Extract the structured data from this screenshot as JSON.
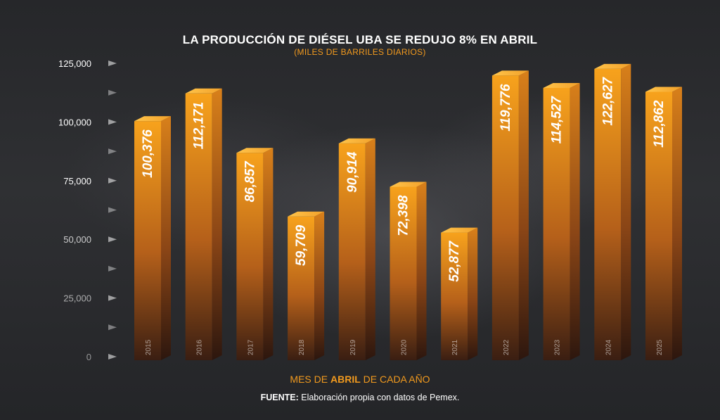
{
  "header": {
    "title": "LA PRODUCCIÓN DE DIÉSEL UBA SE REDUJO 8% EN ABRIL",
    "subtitle": "(MILES DE BARRILES DIARIOS)"
  },
  "footer": {
    "xlabel_prefix": "MES DE ",
    "xlabel_bold": "ABRIL",
    "xlabel_suffix": " DE CADA AÑO",
    "source_label": "FUENTE:",
    "source_text": " Elaboración propia con datos de Pemex."
  },
  "colors": {
    "bar_top": "#f7a21c",
    "bar_bottom": "#3a1e12",
    "accent": "#f29a1e",
    "tick_text": "#ffffff"
  },
  "chart_data": {
    "type": "bar",
    "title": "LA PRODUCCIÓN DE DIÉSEL UBA SE REDUJO 8% EN ABRIL",
    "subtitle": "(MILES DE BARRILES DIARIOS)",
    "xlabel": "MES DE ABRIL DE CADA AÑO",
    "ylabel": "",
    "categories": [
      "2015",
      "2016",
      "2017",
      "2018",
      "2019",
      "2020",
      "2021",
      "2022",
      "2023",
      "2024",
      "2025"
    ],
    "values": [
      100376,
      112171,
      86857,
      59709,
      90914,
      72398,
      52877,
      119776,
      114527,
      122627,
      112862
    ],
    "value_labels": [
      "100,376",
      "112,171",
      "86,857",
      "59,709",
      "90,914",
      "72,398",
      "52,877",
      "119,776",
      "114,527",
      "122,627",
      "112,862"
    ],
    "yticks": [
      0,
      25000,
      50000,
      75000,
      100000,
      125000
    ],
    "ytick_labels": [
      "0",
      "25,000",
      "50,000",
      "75,000",
      "100,000",
      "125,000"
    ],
    "ylim": [
      0,
      125000
    ],
    "grid": false,
    "legend": "none"
  }
}
